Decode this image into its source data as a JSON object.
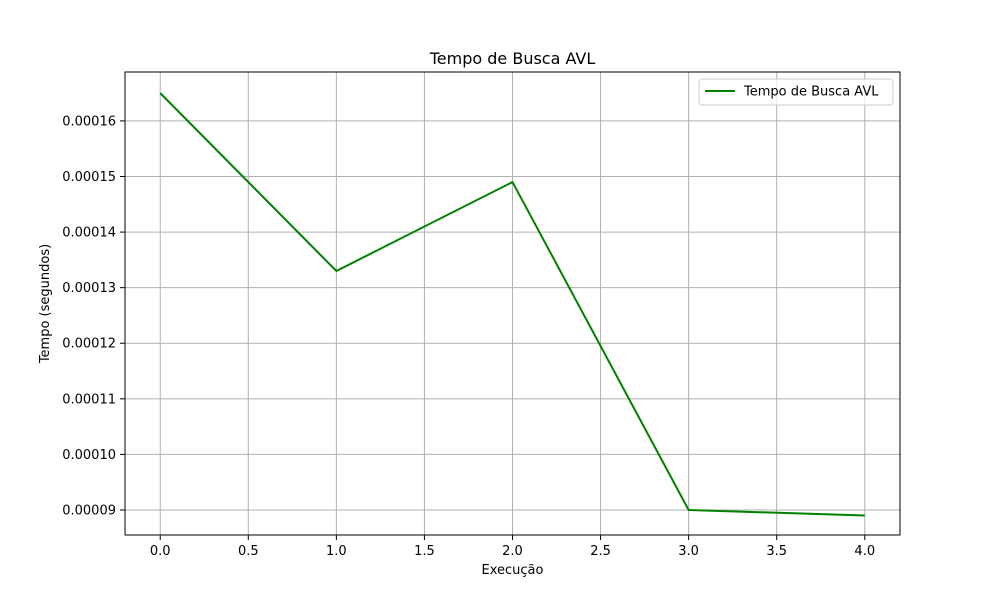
{
  "chart_data": {
    "type": "line",
    "title": "Tempo de Busca AVL",
    "xlabel": "Execução",
    "ylabel": "Tempo (segundos)",
    "xlim": [
      -0.2,
      4.2
    ],
    "ylim": [
      8.55e-05,
      0.0001688
    ],
    "x_ticks": [
      0.0,
      0.5,
      1.0,
      1.5,
      2.0,
      2.5,
      3.0,
      3.5,
      4.0
    ],
    "x_tick_labels": [
      "0.0",
      "0.5",
      "1.0",
      "1.5",
      "2.0",
      "2.5",
      "3.0",
      "3.5",
      "4.0"
    ],
    "y_ticks": [
      9e-05,
      0.0001,
      0.00011,
      0.00012,
      0.00013,
      0.00014,
      0.00015,
      0.00016
    ],
    "y_tick_labels": [
      "0.00009",
      "0.00010",
      "0.00011",
      "0.00012",
      "0.00013",
      "0.00014",
      "0.00015",
      "0.00016"
    ],
    "grid": true,
    "legend_position": "top-right",
    "series": [
      {
        "name": "Tempo de Busca AVL",
        "color": "#008000",
        "x": [
          0,
          1,
          2,
          3,
          4
        ],
        "values": [
          0.000165,
          0.000133,
          0.000149,
          9e-05,
          8.9e-05
        ]
      }
    ]
  }
}
